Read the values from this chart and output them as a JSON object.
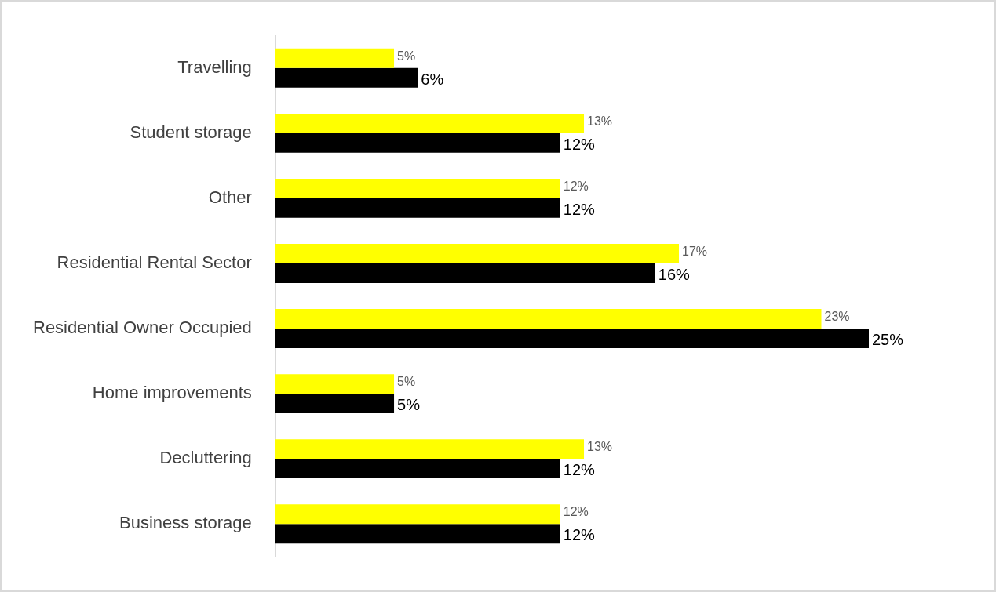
{
  "chart_data": {
    "type": "bar",
    "orientation": "horizontal",
    "categories": [
      "Travelling",
      "Student storage",
      "Other",
      "Residential Rental Sector",
      "Residential Owner Occupied",
      "Home improvements",
      "Decluttering",
      "Business storage"
    ],
    "series": [
      {
        "color": "#ffff00",
        "values": [
          5,
          13,
          12,
          17,
          23,
          5,
          13,
          12
        ],
        "value_labels": [
          "5%",
          "13%",
          "12%",
          "17%",
          "23%",
          "5%",
          "13%",
          "12%"
        ]
      },
      {
        "color": "#000000",
        "values": [
          6,
          12,
          12,
          16,
          25,
          5,
          12,
          12
        ],
        "value_labels": [
          "6%",
          "12%",
          "12%",
          "16%",
          "25%",
          "5%",
          "12%",
          "12%"
        ]
      }
    ],
    "legend": false
  }
}
